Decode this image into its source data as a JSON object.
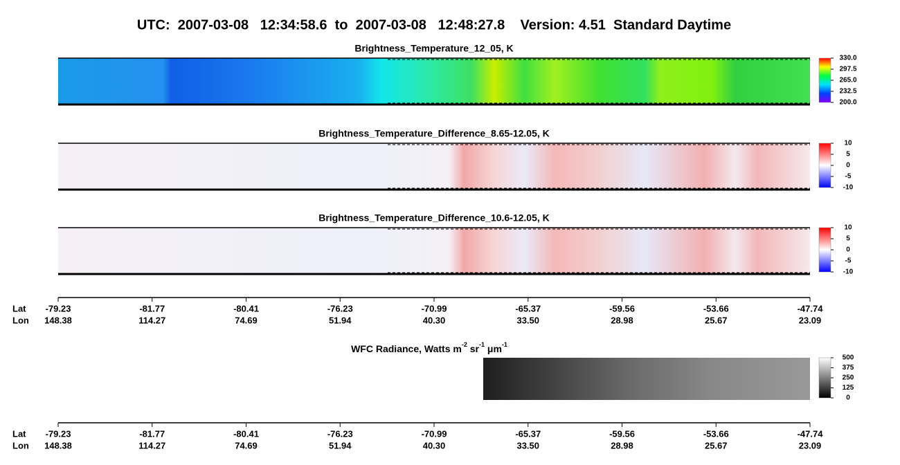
{
  "chart_data": {
    "type": "swath-images",
    "title": "UTC:  2007-03-08   12:34:58.6  to  2007-03-08   12:48:27.8    Version: 4.51  Standard Daytime",
    "panels": [
      {
        "title": "Brightness_Temperature_12_05, K",
        "colormap": "rainbow",
        "clim": [
          200,
          330
        ],
        "ticks": [
          {
            "value": 330,
            "label": "330.0"
          },
          {
            "value": 297.5,
            "label": "297.5"
          },
          {
            "value": 265,
            "label": "265.0"
          },
          {
            "value": 232.5,
            "label": "232.5"
          },
          {
            "value": 200,
            "label": "200.0"
          }
        ]
      },
      {
        "title": "Brightness_Temperature_Difference_8.65-12.05, K",
        "colormap": "bwr",
        "clim": [
          -10,
          10
        ],
        "ticks": [
          10,
          5,
          0,
          -5,
          -10
        ]
      },
      {
        "title": "Brightness_Temperature_Difference_10.6-12.05, K",
        "colormap": "bwr",
        "clim": [
          -10,
          10
        ],
        "ticks": [
          10,
          5,
          0,
          -5,
          -10
        ]
      }
    ],
    "axis": {
      "lat_label": "Lat",
      "lon_label": "Lon",
      "lat": [
        "-79.23",
        "-81.77",
        "-80.41",
        "-76.23",
        "-70.99",
        "-65.37",
        "-59.56",
        "-53.66",
        "-47.74"
      ],
      "lon": [
        "148.38",
        "114.27",
        "74.69",
        "51.94",
        "40.30",
        "33.50",
        "28.98",
        "25.67",
        "23.09"
      ]
    },
    "wfc": {
      "title_parts": [
        "WFC Radiance, Watts m",
        "-2",
        " sr",
        "-1",
        " μm",
        "-1"
      ],
      "colormap": "gray",
      "clim": [
        0,
        500
      ],
      "ticks": [
        500,
        375,
        250,
        125,
        0
      ]
    }
  }
}
